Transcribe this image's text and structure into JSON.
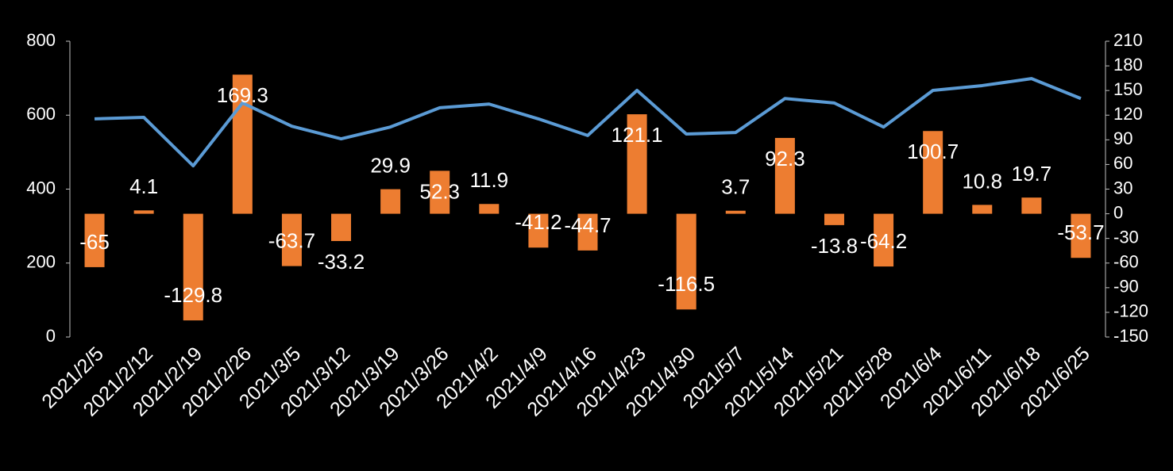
{
  "chart_data": {
    "type": "bar-line",
    "categories": [
      "2021/2/5",
      "2021/2/12",
      "2021/2/19",
      "2021/2/26",
      "2021/3/5",
      "2021/3/12",
      "2021/3/19",
      "2021/3/26",
      "2021/4/2",
      "2021/4/9",
      "2021/4/16",
      "2021/4/23",
      "2021/4/30",
      "2021/5/7",
      "2021/5/14",
      "2021/5/21",
      "2021/5/28",
      "2021/6/4",
      "2021/6/11",
      "2021/6/18",
      "2021/6/25"
    ],
    "series": [
      {
        "type": "bar",
        "axis": "y2",
        "color": "#ed7d31",
        "data_labels": true,
        "values": [
          -65,
          4.1,
          -129.8,
          169.3,
          -63.7,
          -33.2,
          29.9,
          52.3,
          11.9,
          -41.2,
          -44.7,
          121.1,
          -116.5,
          3.7,
          92.3,
          -13.8,
          -64.2,
          100.7,
          10.8,
          19.7,
          -53.7
        ]
      },
      {
        "type": "line",
        "axis": "y",
        "color": "#5b9bd5",
        "values": [
          590,
          594,
          463,
          633,
          570,
          536,
          568,
          620,
          630,
          590,
          545,
          667,
          549,
          553,
          645,
          633,
          568,
          667,
          680,
          699,
          645
        ]
      }
    ],
    "ylim": [
      0,
      800
    ],
    "yticks": [
      0,
      200,
      400,
      600,
      800
    ],
    "y2lim": [
      -150,
      210
    ],
    "y2ticks": [
      -150,
      -120,
      -90,
      -60,
      -30,
      0,
      30,
      60,
      90,
      120,
      150,
      180,
      210
    ],
    "grid": false
  }
}
